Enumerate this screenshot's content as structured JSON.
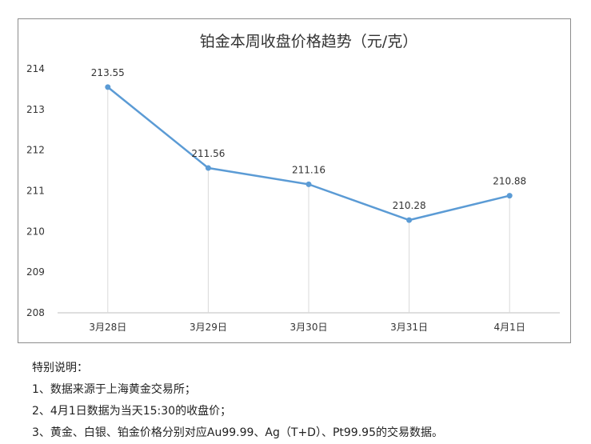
{
  "chart_data": {
    "type": "line",
    "title": "铂金本周收盘价格趋势（元/克）",
    "categories": [
      "3月28日",
      "3月29日",
      "3月30日",
      "3月31日",
      "4月1日"
    ],
    "series": [
      {
        "values": [
          213.55,
          211.56,
          211.16,
          210.28,
          210.88
        ]
      }
    ],
    "data_labels": [
      "213.55",
      "211.56",
      "211.16",
      "210.28",
      "210.88"
    ],
    "yticks": [
      "208",
      "209",
      "210",
      "211",
      "212",
      "213",
      "214"
    ],
    "ylim": [
      208,
      214
    ],
    "xlabel": "",
    "ylabel": "",
    "grid": "vertical drop lines at each category",
    "legend": "none",
    "colors": {
      "line": "#5b9bd5",
      "drop_line": "#d9d9d9",
      "axis": "#bfbfbf",
      "frame": "#8c8c8c"
    }
  },
  "notes": {
    "heading": "特别说明：",
    "items": [
      "1、数据来源于上海黄金交易所；",
      "2、4月1日数据为当天15:30的收盘价；",
      "3、黄金、白银、铂金价格分别对应Au99.99、Ag（T+D）、Pt99.95的交易数据。"
    ]
  }
}
